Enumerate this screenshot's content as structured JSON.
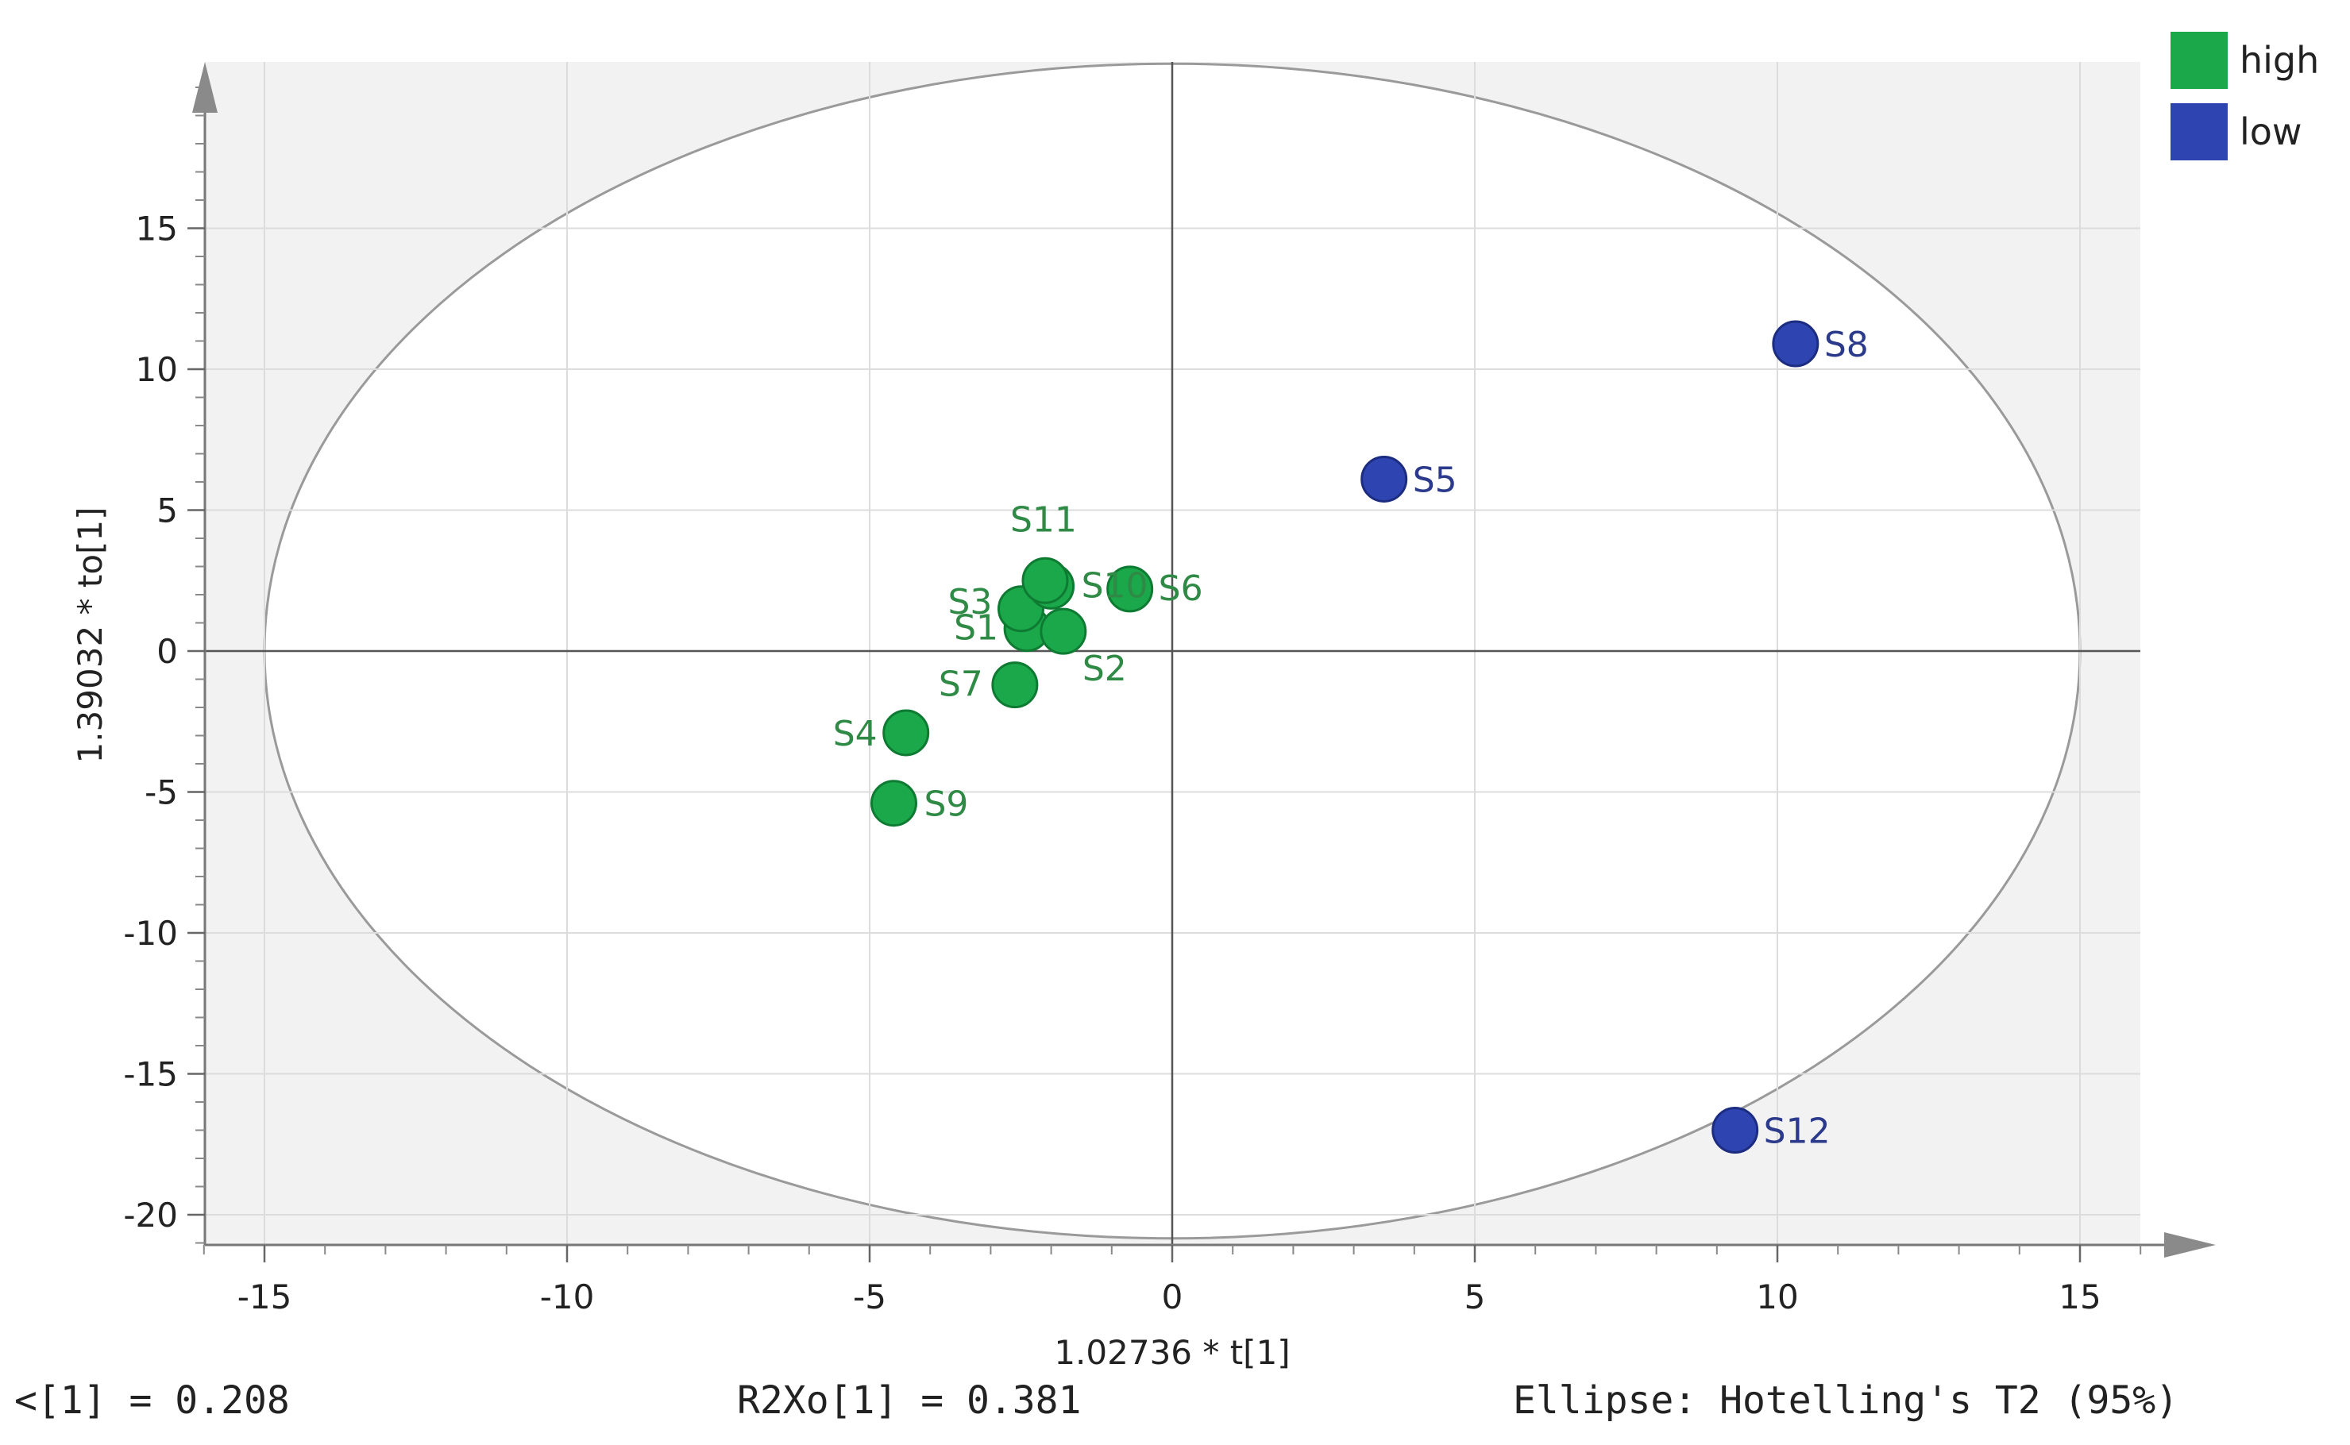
{
  "chart_data": {
    "type": "scatter",
    "xlabel": "1.02736 * t[1]",
    "ylabel": "1.39032 * to[1]",
    "xlim": [
      -16,
      16
    ],
    "ylim": [
      -21,
      21
    ],
    "x_ticks": [
      -15,
      -10,
      -5,
      0,
      5,
      10,
      15
    ],
    "y_ticks": [
      15,
      10,
      5,
      0,
      -5,
      -10,
      -15,
      -20
    ],
    "grid": true,
    "legend_position": "top-right",
    "ellipse": {
      "label": "Ellipse: Hotelling's T2 (95%)",
      "x_radius": 15,
      "y_radius": 20.5
    },
    "series": [
      {
        "name": "high",
        "color": "#1aa84a",
        "points": [
          {
            "label": "S1",
            "x": -2.4,
            "y": 0.8
          },
          {
            "label": "S2",
            "x": -1.8,
            "y": 0.7
          },
          {
            "label": "S3",
            "x": -2.5,
            "y": 1.5
          },
          {
            "label": "S4",
            "x": -4.4,
            "y": -2.9
          },
          {
            "label": "S6",
            "x": -0.7,
            "y": 2.2
          },
          {
            "label": "S7",
            "x": -2.6,
            "y": -1.2
          },
          {
            "label": "S9",
            "x": -4.6,
            "y": -5.4
          },
          {
            "label": "S10",
            "x": -2.0,
            "y": 2.3
          },
          {
            "label": "S11",
            "x": -2.1,
            "y": 2.5
          }
        ]
      },
      {
        "name": "low",
        "color": "#2e44b0",
        "points": [
          {
            "label": "S5",
            "x": 3.5,
            "y": 6.1
          },
          {
            "label": "S8",
            "x": 10.3,
            "y": 10.9
          },
          {
            "label": "S12",
            "x": 9.3,
            "y": -17.0
          }
        ]
      }
    ],
    "legend": [
      {
        "label": "high",
        "color": "#1aa84a"
      },
      {
        "label": "low",
        "color": "#2e44b0"
      }
    ],
    "stats": {
      "left": "<[1] = 0.208",
      "middle": "R2Xo[1] = 0.381",
      "right": "Ellipse: Hotelling's T2 (95%)"
    }
  }
}
